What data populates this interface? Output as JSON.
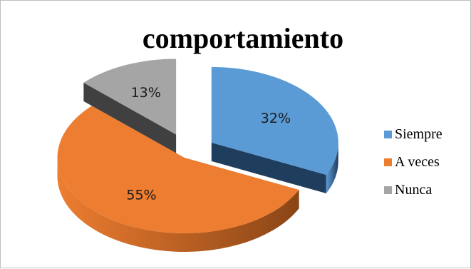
{
  "chart_data": {
    "type": "pie",
    "title": "comportamiento",
    "three_d": true,
    "exploded": true,
    "slices": [
      {
        "name": "Siempre",
        "value": 32,
        "label": "32%",
        "color": "#5b9bd5",
        "side_color": "#1f3d5c"
      },
      {
        "name": "A veces",
        "value": 55,
        "label": "55%",
        "color": "#ed7d31",
        "side_color": "#8a4516"
      },
      {
        "name": "Nunca",
        "value": 13,
        "label": "13%",
        "color": "#a5a5a5",
        "side_color": "#404040"
      }
    ],
    "legend_position": "right"
  }
}
